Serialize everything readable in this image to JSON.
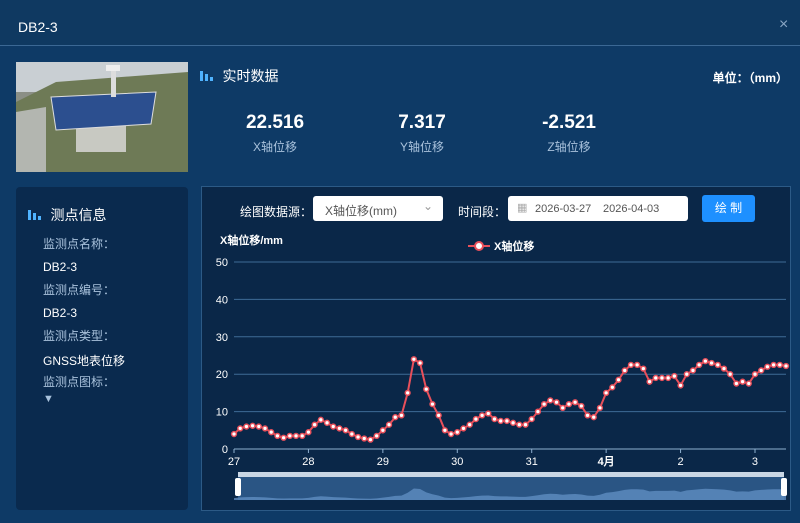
{
  "header": {
    "title": "DB2-3"
  },
  "realtime": {
    "title": "实时数据",
    "unit": "单位：（mm）",
    "items": [
      {
        "value": "22.516",
        "label": "X轴位移"
      },
      {
        "value": "7.317",
        "label": "Y轴位移"
      },
      {
        "value": "-2.521",
        "label": "Z轴位移"
      }
    ]
  },
  "info": {
    "title": "测点信息",
    "fields": [
      {
        "label": "监测点名称：",
        "value": "DB2-3"
      },
      {
        "label": "监测点编号：",
        "value": "DB2-3"
      },
      {
        "label": "监测点类型：",
        "value": "GNSS地表位移"
      },
      {
        "label": "监测点图标："
      }
    ]
  },
  "controls": {
    "source_label": "绘图数据源：",
    "source_value": "X轴位移(mm)",
    "period_label": "时间段：",
    "start_date": "2026-03-27",
    "end_date": "2026-04-03",
    "button": "绘 制"
  },
  "chart_data": {
    "type": "line",
    "ylabel": "X轴位移/mm",
    "series": [
      {
        "name": "X轴位移",
        "color": "#e8505b",
        "values": [
          4,
          5.5,
          6,
          6.2,
          6,
          5.5,
          4.5,
          3.5,
          3,
          3.5,
          3.5,
          3.5,
          4.5,
          6.5,
          7.8,
          7,
          6,
          5.5,
          5,
          4,
          3.2,
          2.8,
          2.5,
          3.5,
          5,
          6.5,
          8.5,
          9,
          15,
          24,
          23,
          16,
          12,
          9,
          5,
          4,
          4.5,
          5.5,
          6.5,
          8,
          9,
          9.5,
          8,
          7.5,
          7.5,
          7,
          6.5,
          6.5,
          8,
          10,
          12,
          13,
          12.5,
          11,
          12,
          12.5,
          11.5,
          9,
          8.5,
          11,
          15,
          16.5,
          18.5,
          21,
          22.5,
          22.5,
          21.5,
          18,
          19,
          19,
          19,
          19.5,
          17,
          20,
          21,
          22.5,
          23.5,
          23,
          22.5,
          21.5,
          20,
          17.5,
          18,
          17.5,
          20,
          21,
          22,
          22.5,
          22.5,
          22.2
        ]
      }
    ],
    "xlim": [
      0,
      89
    ],
    "xticks": [
      {
        "value": 0,
        "label": "27"
      },
      {
        "value": 12,
        "label": "28"
      },
      {
        "value": 24,
        "label": "29"
      },
      {
        "value": 36,
        "label": "30"
      },
      {
        "value": 48,
        "label": "31"
      },
      {
        "value": 60,
        "label": "4月"
      },
      {
        "value": 72,
        "label": "2"
      },
      {
        "value": 84,
        "label": "3"
      }
    ],
    "ylim": [
      0,
      50
    ],
    "yticks": [
      0,
      10,
      20,
      30,
      40,
      50
    ],
    "grid": true,
    "legend": "top"
  }
}
